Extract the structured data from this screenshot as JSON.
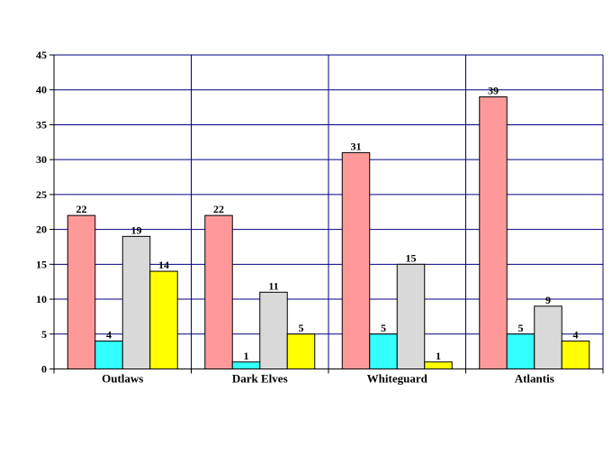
{
  "chart_data": {
    "type": "bar",
    "title": "",
    "xlabel": "",
    "ylabel": "",
    "categories": [
      "Outlaws",
      "Dark Elves",
      "Whiteguard",
      "Atlantis"
    ],
    "series": [
      {
        "color": "#ff9999",
        "values": [
          22,
          22,
          31,
          39
        ]
      },
      {
        "color": "#33ffff",
        "values": [
          4,
          1,
          5,
          5
        ]
      },
      {
        "color": "#d9d9d9",
        "values": [
          19,
          11,
          15,
          9
        ]
      },
      {
        "color": "#ffff00",
        "values": [
          14,
          5,
          1,
          4
        ]
      }
    ],
    "ylim": [
      0,
      45
    ],
    "yticks": [
      0,
      5,
      10,
      15,
      20,
      25,
      30,
      35,
      40,
      45
    ],
    "grid": true,
    "legend": "none",
    "data_labels": true
  }
}
